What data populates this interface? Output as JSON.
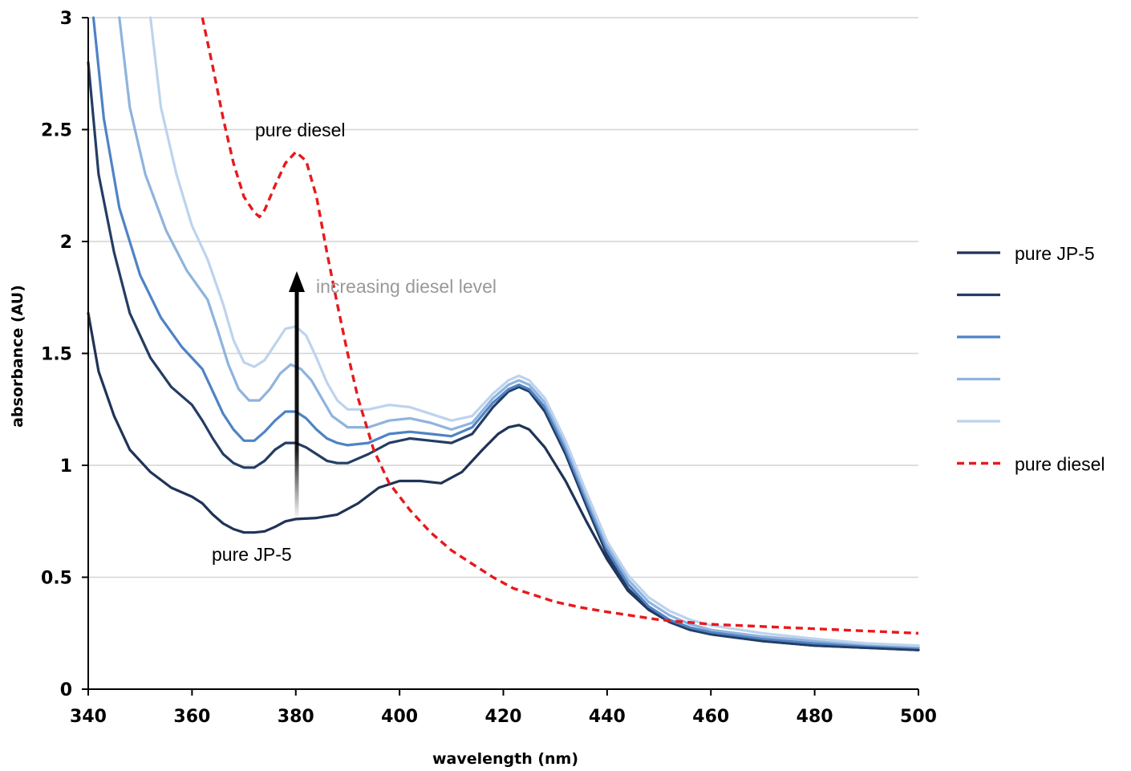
{
  "chart_data": {
    "type": "line",
    "title": "",
    "xlabel": "wavelength (nm)",
    "ylabel": "absorbance (AU)",
    "xlim": [
      340,
      500
    ],
    "ylim": [
      0,
      3
    ],
    "xticks": [
      340,
      360,
      380,
      400,
      420,
      440,
      460,
      480,
      500
    ],
    "xtick_labels": [
      "340",
      "360",
      "380",
      "400",
      "420",
      "440",
      "460",
      "480",
      "500"
    ],
    "yticks": [
      0,
      0.5,
      1,
      1.5,
      2,
      2.5,
      3
    ],
    "ytick_labels": [
      "0",
      "0.5",
      "1",
      "1.5",
      "2",
      "2.5",
      "3"
    ],
    "grid": "horizontal",
    "legend_position": "right",
    "annotations": {
      "diesel_label": "pure diesel",
      "jp5_label": "pure JP-5",
      "arrow_label": "increasing diesel level"
    },
    "series": [
      {
        "name": "pure JP-5",
        "color": "#1f3356",
        "dash": false,
        "x": [
          340,
          342,
          345,
          348,
          352,
          356,
          360,
          362,
          364,
          366,
          368,
          370,
          372,
          374,
          376,
          378,
          380,
          384,
          388,
          392,
          396,
          400,
          404,
          408,
          412,
          416,
          419,
          421,
          423,
          425,
          428,
          432,
          436,
          440,
          444,
          448,
          452,
          456,
          460,
          470,
          480,
          490,
          500
        ],
        "y": [
          1.68,
          1.42,
          1.22,
          1.07,
          0.97,
          0.9,
          0.86,
          0.83,
          0.78,
          0.74,
          0.715,
          0.7,
          0.7,
          0.705,
          0.725,
          0.75,
          0.76,
          0.765,
          0.78,
          0.83,
          0.9,
          0.93,
          0.93,
          0.92,
          0.97,
          1.07,
          1.14,
          1.17,
          1.18,
          1.16,
          1.08,
          0.93,
          0.75,
          0.58,
          0.44,
          0.355,
          0.3,
          0.265,
          0.245,
          0.215,
          0.195,
          0.185,
          0.175
        ]
      },
      {
        "name": "",
        "color": "#243d64",
        "dash": false,
        "x": [
          340,
          342,
          345,
          348,
          352,
          356,
          360,
          362,
          364,
          366,
          368,
          370,
          372,
          374,
          376,
          378,
          380,
          382,
          384,
          386,
          388,
          390,
          394,
          398,
          402,
          406,
          410,
          414,
          418,
          421,
          423,
          425,
          428,
          432,
          436,
          440,
          444,
          448,
          452,
          456,
          460,
          470,
          480,
          490,
          500
        ],
        "y": [
          2.8,
          2.3,
          1.95,
          1.68,
          1.48,
          1.35,
          1.27,
          1.2,
          1.12,
          1.05,
          1.01,
          0.99,
          0.99,
          1.02,
          1.07,
          1.1,
          1.1,
          1.08,
          1.05,
          1.02,
          1.01,
          1.01,
          1.05,
          1.1,
          1.12,
          1.11,
          1.1,
          1.14,
          1.26,
          1.33,
          1.35,
          1.33,
          1.24,
          1.05,
          0.82,
          0.6,
          0.45,
          0.36,
          0.3,
          0.265,
          0.245,
          0.215,
          0.195,
          0.185,
          0.175
        ]
      },
      {
        "name": "",
        "color": "#4f83c4",
        "dash": false,
        "x": [
          341,
          343,
          346,
          350,
          354,
          358,
          362,
          364,
          366,
          368,
          370,
          372,
          374,
          376,
          378,
          380,
          382,
          384,
          386,
          388,
          390,
          394,
          398,
          402,
          406,
          410,
          414,
          418,
          421,
          423,
          425,
          428,
          432,
          436,
          440,
          444,
          448,
          452,
          456,
          460,
          470,
          480,
          490,
          500
        ],
        "y": [
          3.0,
          2.55,
          2.15,
          1.85,
          1.66,
          1.53,
          1.43,
          1.33,
          1.23,
          1.16,
          1.11,
          1.11,
          1.15,
          1.2,
          1.24,
          1.24,
          1.21,
          1.16,
          1.12,
          1.1,
          1.09,
          1.1,
          1.14,
          1.15,
          1.14,
          1.13,
          1.17,
          1.28,
          1.34,
          1.36,
          1.34,
          1.26,
          1.07,
          0.84,
          0.62,
          0.47,
          0.37,
          0.31,
          0.275,
          0.255,
          0.225,
          0.205,
          0.195,
          0.185
        ]
      },
      {
        "name": "",
        "color": "#8fb3dd",
        "dash": false,
        "x": [
          346,
          348,
          351,
          355,
          359,
          363,
          365,
          367,
          369,
          371,
          373,
          375,
          377,
          379,
          381,
          383,
          385,
          387,
          390,
          394,
          398,
          402,
          406,
          410,
          414,
          418,
          421,
          423,
          425,
          428,
          432,
          436,
          440,
          444,
          448,
          452,
          456,
          460,
          470,
          480,
          490,
          500
        ],
        "y": [
          3.0,
          2.6,
          2.3,
          2.05,
          1.87,
          1.74,
          1.6,
          1.45,
          1.34,
          1.29,
          1.29,
          1.34,
          1.41,
          1.45,
          1.43,
          1.38,
          1.3,
          1.22,
          1.17,
          1.17,
          1.2,
          1.21,
          1.19,
          1.16,
          1.19,
          1.3,
          1.36,
          1.38,
          1.36,
          1.28,
          1.09,
          0.86,
          0.64,
          0.49,
          0.39,
          0.33,
          0.29,
          0.265,
          0.235,
          0.215,
          0.2,
          0.19
        ]
      },
      {
        "name": "",
        "color": "#bdd3ee",
        "dash": false,
        "x": [
          352,
          354,
          357,
          360,
          363,
          366,
          368,
          370,
          372,
          374,
          376,
          378,
          380,
          382,
          384,
          386,
          388,
          390,
          394,
          398,
          402,
          406,
          410,
          414,
          418,
          421,
          423,
          425,
          428,
          432,
          436,
          440,
          444,
          448,
          452,
          456,
          460,
          470,
          480,
          490,
          500
        ],
        "y": [
          3.0,
          2.6,
          2.3,
          2.07,
          1.92,
          1.72,
          1.56,
          1.46,
          1.44,
          1.47,
          1.54,
          1.61,
          1.62,
          1.58,
          1.48,
          1.37,
          1.29,
          1.25,
          1.25,
          1.27,
          1.26,
          1.23,
          1.2,
          1.22,
          1.32,
          1.38,
          1.4,
          1.38,
          1.3,
          1.11,
          0.88,
          0.66,
          0.51,
          0.41,
          0.35,
          0.31,
          0.285,
          0.25,
          0.225,
          0.205,
          0.195
        ]
      },
      {
        "name": "pure diesel",
        "color": "#e8191c",
        "dash": true,
        "x": [
          362,
          364,
          366,
          368,
          370,
          372,
          373,
          374,
          376,
          378,
          380,
          382,
          384,
          386,
          388,
          390,
          392,
          395,
          398,
          402,
          406,
          410,
          414,
          418,
          422,
          426,
          430,
          435,
          440,
          450,
          460,
          470,
          480,
          490,
          500
        ],
        "y": [
          3.0,
          2.78,
          2.55,
          2.35,
          2.2,
          2.13,
          2.11,
          2.14,
          2.25,
          2.35,
          2.4,
          2.36,
          2.2,
          1.95,
          1.72,
          1.5,
          1.3,
          1.07,
          0.92,
          0.8,
          0.7,
          0.62,
          0.56,
          0.5,
          0.45,
          0.42,
          0.39,
          0.365,
          0.345,
          0.31,
          0.29,
          0.28,
          0.27,
          0.26,
          0.25
        ]
      }
    ]
  }
}
